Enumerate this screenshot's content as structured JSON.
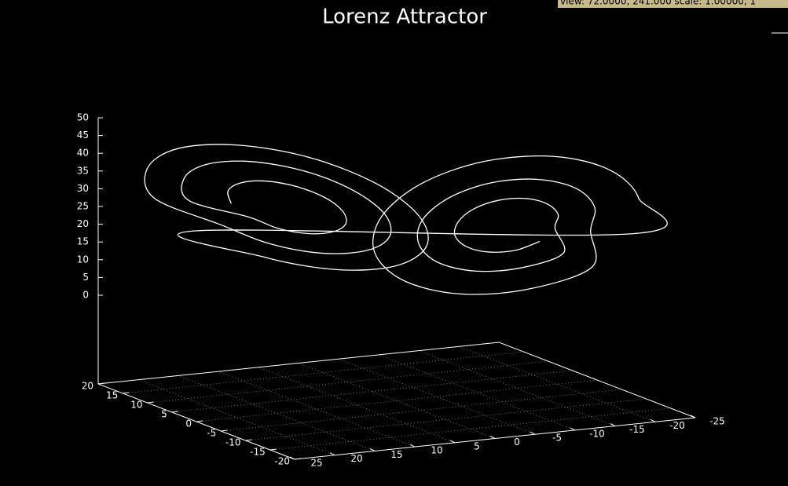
{
  "chart_data": {
    "type": "line3d",
    "title": "Lorenz Attractor",
    "status": "view: 72.0000, 241.000  scale: 1.00000, 1",
    "xlim": [
      -20,
      20
    ],
    "ylim": [
      -25,
      25
    ],
    "zlim": [
      0,
      50
    ],
    "xticks": [
      20,
      15,
      10,
      5,
      0,
      -5,
      -10,
      -15,
      -20
    ],
    "yticks": [
      25,
      20,
      15,
      10,
      5,
      0,
      -5,
      -10,
      -15,
      -20,
      -25
    ],
    "zticks": [
      0,
      5,
      10,
      15,
      20,
      25,
      30,
      35,
      40,
      45,
      50
    ],
    "grid": true,
    "series": [
      {
        "color": "#ffffff",
        "x": [
          12.5,
          12.0,
          10.5,
          8.5,
          6.5,
          5.0,
          4.5,
          5.0,
          6.5,
          8.5,
          10.5,
          12.0,
          15.5,
          14.6,
          12.0,
          8.5,
          5.0,
          2.4,
          1.5,
          2.4,
          5.0,
          8.5,
          12.0,
          14.6,
          18.0,
          16.7,
          13.3,
          8.5,
          3.8,
          0.3,
          -1.0,
          0.3,
          3.8,
          8.5,
          13.3,
          16.7,
          -17.5,
          -16.3,
          -13.0,
          -8.5,
          -4.0,
          -0.7,
          0.5,
          -0.7,
          -4.0,
          -8.5,
          -13.0,
          -16.3,
          -14.5,
          -13.7,
          -11.5,
          -8.5,
          -5.5,
          -3.3,
          -2.5,
          -3.3,
          -5.5,
          -8.5,
          -11.5,
          -13.7,
          -12.0,
          -11.5,
          -10.3,
          -8.5,
          -6.8,
          -5.5,
          -5.0,
          -5.5,
          -6.8,
          -8.5,
          -10.3,
          -11.5
        ],
        "y": [
          13.0,
          13.7,
          13.0,
          11.1,
          8.5,
          5.9,
          4.0,
          3.3,
          4.0,
          5.9,
          8.5,
          11.1,
          16.4,
          17.6,
          16.4,
          13.1,
          8.5,
          4.0,
          0.6,
          -0.6,
          0.6,
          4.0,
          8.5,
          13.1,
          19.2,
          20.9,
          19.2,
          14.7,
          8.5,
          2.3,
          -2.2,
          -3.9,
          -2.2,
          2.3,
          8.5,
          14.7,
          -18.6,
          -20.2,
          -18.6,
          -14.4,
          -8.5,
          -2.7,
          1.6,
          3.2,
          1.6,
          -2.7,
          -8.5,
          -14.4,
          -15.3,
          -16.3,
          -15.3,
          -12.4,
          -8.5,
          -4.6,
          -1.7,
          -0.7,
          -1.7,
          -4.6,
          -8.5,
          -12.4,
          -12.4,
          -13.1,
          -12.4,
          -10.8,
          -8.5,
          -6.2,
          -4.6,
          -3.9,
          -4.6,
          -6.2,
          -8.5,
          -10.8
        ],
        "z": [
          27,
          31,
          33.9,
          35,
          33.9,
          31,
          27,
          23,
          20.1,
          19,
          20.1,
          23,
          27,
          34,
          39.1,
          41,
          39.1,
          34,
          27,
          20,
          14.9,
          13,
          14.9,
          20,
          27,
          36.5,
          43.5,
          46,
          43.5,
          36.5,
          27,
          17.5,
          10.5,
          8,
          10.5,
          17.5,
          27,
          36,
          42.6,
          45,
          42.6,
          36,
          27,
          18,
          11.4,
          9,
          11.4,
          18,
          27,
          33,
          37.4,
          39,
          37.4,
          33,
          27,
          21,
          16.6,
          15,
          16.6,
          21,
          27,
          30.5,
          33.1,
          34,
          33.1,
          30.5,
          27,
          23.5,
          20.9,
          20,
          20.9,
          23.5
        ]
      }
    ]
  }
}
